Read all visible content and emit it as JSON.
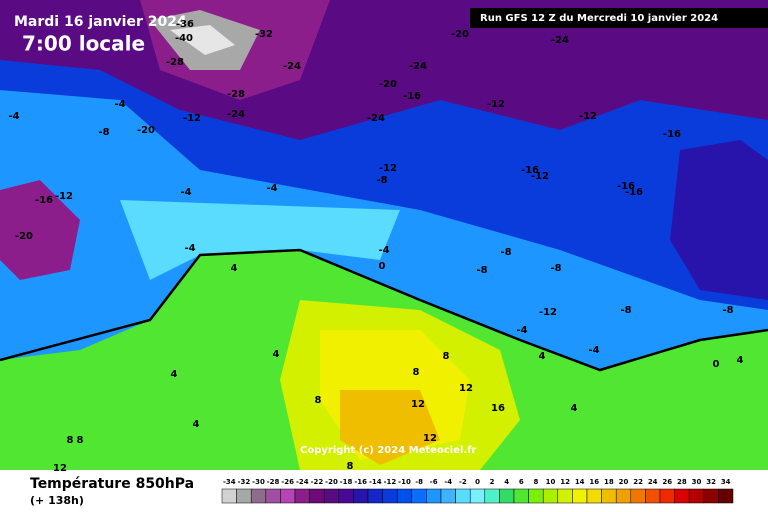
{
  "header": {
    "date": "Mardi 16 janvier 2024",
    "time": "7:00 locale",
    "run": "Run GFS 12 Z du Mercredi 10 janvier 2024"
  },
  "copyright": "Copyright (c) 2024 Meteociel.fr",
  "footer": {
    "title": "Température 850hPa",
    "lead": "(+ 138h)"
  },
  "legend": {
    "values": [
      -34,
      -32,
      -30,
      -28,
      -26,
      -24,
      -22,
      -20,
      -18,
      -16,
      -14,
      -12,
      -10,
      -8,
      -6,
      -4,
      -2,
      0,
      2,
      4,
      6,
      8,
      10,
      12,
      14,
      16,
      18,
      20,
      22,
      24,
      26,
      28,
      30,
      32,
      34
    ],
    "colors": [
      "#d2d2d2",
      "#a8a8a8",
      "#8c6e8c",
      "#a050a0",
      "#b446b4",
      "#8c1e8c",
      "#6e0a78",
      "#5a0a82",
      "#460a96",
      "#2814aa",
      "#1428c8",
      "#0a3cdc",
      "#0050f0",
      "#0a6eff",
      "#1e96ff",
      "#3cb4ff",
      "#5adcff",
      "#78f0ff",
      "#50f0c8",
      "#32dc64",
      "#50e632",
      "#78f00a",
      "#aaf000",
      "#d2f000",
      "#f0f000",
      "#f0dc00",
      "#f0be00",
      "#f0a000",
      "#f07800",
      "#f05000",
      "#f02800",
      "#dc0000",
      "#b40000",
      "#8c0000",
      "#640000"
    ]
  },
  "map": {
    "contour_labels": [
      -36,
      -40,
      -32,
      -28,
      -24,
      -20,
      -24,
      -24,
      -20,
      -16,
      -24,
      -28,
      -24,
      -12,
      -20,
      -4,
      -4,
      -8,
      -16,
      -12,
      -4,
      -20,
      -12,
      -12,
      -12,
      -16,
      -8,
      -16,
      -12,
      -16,
      -16,
      -4,
      -4,
      -4,
      -8,
      -8,
      -8,
      -12,
      -8,
      -4,
      0,
      4,
      4,
      4,
      8,
      8,
      8,
      8,
      12,
      12,
      12,
      16,
      8,
      4,
      4,
      0,
      4,
      8,
      12,
      4,
      -4,
      -8
    ]
  }
}
